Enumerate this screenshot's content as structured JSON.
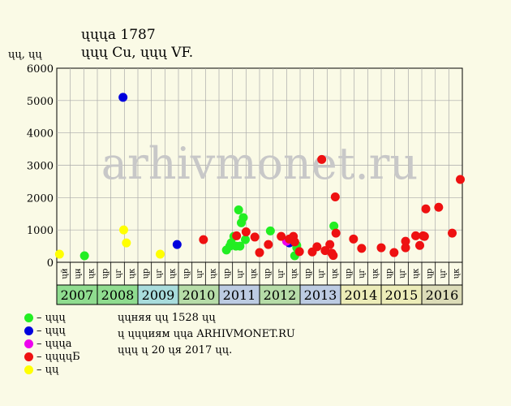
{
  "header": {
    "title_line1": "ųųųа 1787",
    "title_line2": "ųųų Cu, ųųų VF.",
    "y_unit": "ųų, ųų"
  },
  "watermark": "arhivmonet.ru",
  "legend": [
    {
      "label": "– ųųų",
      "color": "#22ee22"
    },
    {
      "label": "– ųųų",
      "color": "#0000dd"
    },
    {
      "label": "– ųųųа",
      "color": "#ee00ee"
    },
    {
      "label": "– ųųųųБ",
      "color": "#ee1111"
    },
    {
      "label": "– ųų",
      "color": "#ffff00"
    }
  ],
  "notes": [
    "ųųняя ųų 1528 ųų",
    "ų ųųųиям ųųа ARHIVMONET.RU",
    "ųųų ų 20 ųя 2017 ųų."
  ],
  "chart_data": {
    "type": "scatter",
    "ylim": [
      0,
      6000
    ],
    "yticks": [
      0,
      1000,
      2000,
      3000,
      4000,
      5000,
      6000
    ],
    "years": [
      {
        "label": "2007",
        "color": "#8fdc8f"
      },
      {
        "label": "2008",
        "color": "#8fdc8f"
      },
      {
        "label": "2009",
        "color": "#a8dcdc"
      },
      {
        "label": "2010",
        "color": "#b6dca8"
      },
      {
        "label": "2011",
        "color": "#bccbe2"
      },
      {
        "label": "2012",
        "color": "#b6dca8"
      },
      {
        "label": "2013",
        "color": "#bccbe2"
      },
      {
        "label": "2014",
        "color": "#ececb8"
      },
      {
        "label": "2015",
        "color": "#ececb8"
      },
      {
        "label": "2016",
        "color": "#dcdcb8"
      }
    ],
    "quarter_labels": [
      "ųй",
      "ųн",
      "ųк",
      "ųр",
      "ųг",
      "ųк",
      "ųр",
      "ųг",
      "ųк",
      "ųр",
      "ųг",
      "ųк",
      "ųр",
      "ųг",
      "ųк",
      "ųр",
      "ųг",
      "ųк",
      "ųр",
      "ųг",
      "ųк",
      "ųр",
      "ųг",
      "ųк",
      "ųр",
      "ųг",
      "ųк",
      "ųр",
      "ųг",
      "ųк"
    ],
    "series": [
      {
        "name": "ųųų",
        "color": "#22ee22",
        "points": [
          [
            2.05,
            200
          ],
          [
            12.55,
            380
          ],
          [
            12.8,
            500
          ],
          [
            12.9,
            600
          ],
          [
            13.1,
            800
          ],
          [
            13.25,
            500
          ],
          [
            13.45,
            1620
          ],
          [
            13.55,
            500
          ],
          [
            13.65,
            1220
          ],
          [
            13.8,
            1380
          ],
          [
            13.95,
            700
          ],
          [
            15.8,
            970
          ],
          [
            17.6,
            200
          ],
          [
            17.75,
            450
          ],
          [
            17.75,
            520
          ],
          [
            20.5,
            1120
          ]
        ]
      },
      {
        "name": "ųųų",
        "color": "#0000dd",
        "points": [
          [
            4.9,
            5100
          ],
          [
            8.9,
            550
          ],
          [
            17.2,
            600
          ]
        ]
      },
      {
        "name": "ųųųа",
        "color": "#ee00ee",
        "points": [
          [
            17.0,
            650
          ]
        ]
      },
      {
        "name": "ųųųųБ",
        "color": "#ee1111",
        "points": [
          [
            10.85,
            700
          ],
          [
            13.3,
            820
          ],
          [
            14.0,
            940
          ],
          [
            14.65,
            780
          ],
          [
            15.0,
            300
          ],
          [
            15.65,
            550
          ],
          [
            16.6,
            800
          ],
          [
            17.2,
            720
          ],
          [
            17.5,
            800
          ],
          [
            17.6,
            630
          ],
          [
            17.95,
            330
          ],
          [
            18.9,
            320
          ],
          [
            19.25,
            480
          ],
          [
            19.6,
            3180
          ],
          [
            19.85,
            360
          ],
          [
            20.2,
            550
          ],
          [
            20.35,
            280
          ],
          [
            20.45,
            210
          ],
          [
            20.6,
            2020
          ],
          [
            20.65,
            900
          ],
          [
            21.95,
            720
          ],
          [
            22.55,
            430
          ],
          [
            24.0,
            450
          ],
          [
            24.95,
            300
          ],
          [
            25.8,
            450
          ],
          [
            25.8,
            650
          ],
          [
            26.55,
            820
          ],
          [
            26.85,
            520
          ],
          [
            27.1,
            820
          ],
          [
            27.2,
            800
          ],
          [
            27.3,
            1650
          ],
          [
            28.25,
            1700
          ],
          [
            29.25,
            900
          ],
          [
            29.85,
            2560
          ]
        ]
      },
      {
        "name": "ųų",
        "color": "#ffff00",
        "points": [
          [
            0.2,
            250
          ],
          [
            4.95,
            1000
          ],
          [
            5.15,
            600
          ],
          [
            7.65,
            250
          ]
        ]
      }
    ]
  }
}
